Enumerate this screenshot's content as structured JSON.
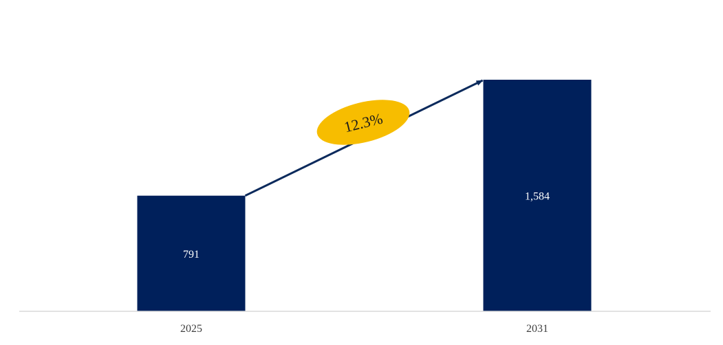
{
  "chart_data": {
    "type": "bar",
    "categories": [
      "2025",
      "2031"
    ],
    "values": [
      791,
      1584
    ],
    "value_labels": [
      "791",
      "1,584"
    ],
    "title": "",
    "xlabel": "",
    "ylabel": "",
    "ylim": [
      0,
      1584
    ],
    "grid": false,
    "legend": "none",
    "annotation": {
      "type": "growth-arrow",
      "label": "12.3%",
      "from_category": "2025",
      "to_category": "2031"
    }
  },
  "colors": {
    "bar": "#00205b",
    "arrow": "#0b2a5c",
    "badge": "#f7bd00",
    "axis": "#d9d9d9"
  }
}
